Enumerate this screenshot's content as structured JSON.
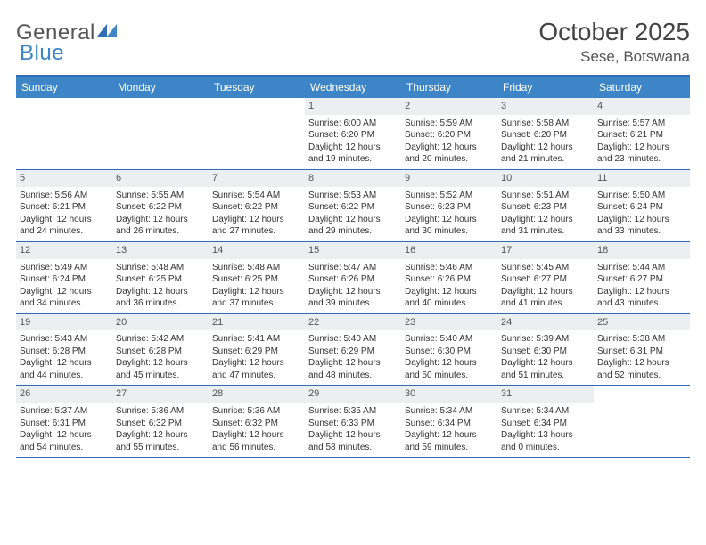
{
  "brand": {
    "general": "General",
    "blue": "Blue"
  },
  "title": "October 2025",
  "location": "Sese, Botswana",
  "colors": {
    "header_bg": "#3d85c6",
    "border": "#2f6eb5",
    "daynum_bg": "#eceff1"
  },
  "daysOfWeek": [
    "Sunday",
    "Monday",
    "Tuesday",
    "Wednesday",
    "Thursday",
    "Friday",
    "Saturday"
  ],
  "weeks": [
    [
      {
        "num": "",
        "sunrise": "",
        "sunset": "",
        "daylight": ""
      },
      {
        "num": "",
        "sunrise": "",
        "sunset": "",
        "daylight": ""
      },
      {
        "num": "",
        "sunrise": "",
        "sunset": "",
        "daylight": ""
      },
      {
        "num": "1",
        "sunrise": "Sunrise: 6:00 AM",
        "sunset": "Sunset: 6:20 PM",
        "daylight": "Daylight: 12 hours and 19 minutes."
      },
      {
        "num": "2",
        "sunrise": "Sunrise: 5:59 AM",
        "sunset": "Sunset: 6:20 PM",
        "daylight": "Daylight: 12 hours and 20 minutes."
      },
      {
        "num": "3",
        "sunrise": "Sunrise: 5:58 AM",
        "sunset": "Sunset: 6:20 PM",
        "daylight": "Daylight: 12 hours and 21 minutes."
      },
      {
        "num": "4",
        "sunrise": "Sunrise: 5:57 AM",
        "sunset": "Sunset: 6:21 PM",
        "daylight": "Daylight: 12 hours and 23 minutes."
      }
    ],
    [
      {
        "num": "5",
        "sunrise": "Sunrise: 5:56 AM",
        "sunset": "Sunset: 6:21 PM",
        "daylight": "Daylight: 12 hours and 24 minutes."
      },
      {
        "num": "6",
        "sunrise": "Sunrise: 5:55 AM",
        "sunset": "Sunset: 6:22 PM",
        "daylight": "Daylight: 12 hours and 26 minutes."
      },
      {
        "num": "7",
        "sunrise": "Sunrise: 5:54 AM",
        "sunset": "Sunset: 6:22 PM",
        "daylight": "Daylight: 12 hours and 27 minutes."
      },
      {
        "num": "8",
        "sunrise": "Sunrise: 5:53 AM",
        "sunset": "Sunset: 6:22 PM",
        "daylight": "Daylight: 12 hours and 29 minutes."
      },
      {
        "num": "9",
        "sunrise": "Sunrise: 5:52 AM",
        "sunset": "Sunset: 6:23 PM",
        "daylight": "Daylight: 12 hours and 30 minutes."
      },
      {
        "num": "10",
        "sunrise": "Sunrise: 5:51 AM",
        "sunset": "Sunset: 6:23 PM",
        "daylight": "Daylight: 12 hours and 31 minutes."
      },
      {
        "num": "11",
        "sunrise": "Sunrise: 5:50 AM",
        "sunset": "Sunset: 6:24 PM",
        "daylight": "Daylight: 12 hours and 33 minutes."
      }
    ],
    [
      {
        "num": "12",
        "sunrise": "Sunrise: 5:49 AM",
        "sunset": "Sunset: 6:24 PM",
        "daylight": "Daylight: 12 hours and 34 minutes."
      },
      {
        "num": "13",
        "sunrise": "Sunrise: 5:48 AM",
        "sunset": "Sunset: 6:25 PM",
        "daylight": "Daylight: 12 hours and 36 minutes."
      },
      {
        "num": "14",
        "sunrise": "Sunrise: 5:48 AM",
        "sunset": "Sunset: 6:25 PM",
        "daylight": "Daylight: 12 hours and 37 minutes."
      },
      {
        "num": "15",
        "sunrise": "Sunrise: 5:47 AM",
        "sunset": "Sunset: 6:26 PM",
        "daylight": "Daylight: 12 hours and 39 minutes."
      },
      {
        "num": "16",
        "sunrise": "Sunrise: 5:46 AM",
        "sunset": "Sunset: 6:26 PM",
        "daylight": "Daylight: 12 hours and 40 minutes."
      },
      {
        "num": "17",
        "sunrise": "Sunrise: 5:45 AM",
        "sunset": "Sunset: 6:27 PM",
        "daylight": "Daylight: 12 hours and 41 minutes."
      },
      {
        "num": "18",
        "sunrise": "Sunrise: 5:44 AM",
        "sunset": "Sunset: 6:27 PM",
        "daylight": "Daylight: 12 hours and 43 minutes."
      }
    ],
    [
      {
        "num": "19",
        "sunrise": "Sunrise: 5:43 AM",
        "sunset": "Sunset: 6:28 PM",
        "daylight": "Daylight: 12 hours and 44 minutes."
      },
      {
        "num": "20",
        "sunrise": "Sunrise: 5:42 AM",
        "sunset": "Sunset: 6:28 PM",
        "daylight": "Daylight: 12 hours and 45 minutes."
      },
      {
        "num": "21",
        "sunrise": "Sunrise: 5:41 AM",
        "sunset": "Sunset: 6:29 PM",
        "daylight": "Daylight: 12 hours and 47 minutes."
      },
      {
        "num": "22",
        "sunrise": "Sunrise: 5:40 AM",
        "sunset": "Sunset: 6:29 PM",
        "daylight": "Daylight: 12 hours and 48 minutes."
      },
      {
        "num": "23",
        "sunrise": "Sunrise: 5:40 AM",
        "sunset": "Sunset: 6:30 PM",
        "daylight": "Daylight: 12 hours and 50 minutes."
      },
      {
        "num": "24",
        "sunrise": "Sunrise: 5:39 AM",
        "sunset": "Sunset: 6:30 PM",
        "daylight": "Daylight: 12 hours and 51 minutes."
      },
      {
        "num": "25",
        "sunrise": "Sunrise: 5:38 AM",
        "sunset": "Sunset: 6:31 PM",
        "daylight": "Daylight: 12 hours and 52 minutes."
      }
    ],
    [
      {
        "num": "26",
        "sunrise": "Sunrise: 5:37 AM",
        "sunset": "Sunset: 6:31 PM",
        "daylight": "Daylight: 12 hours and 54 minutes."
      },
      {
        "num": "27",
        "sunrise": "Sunrise: 5:36 AM",
        "sunset": "Sunset: 6:32 PM",
        "daylight": "Daylight: 12 hours and 55 minutes."
      },
      {
        "num": "28",
        "sunrise": "Sunrise: 5:36 AM",
        "sunset": "Sunset: 6:32 PM",
        "daylight": "Daylight: 12 hours and 56 minutes."
      },
      {
        "num": "29",
        "sunrise": "Sunrise: 5:35 AM",
        "sunset": "Sunset: 6:33 PM",
        "daylight": "Daylight: 12 hours and 58 minutes."
      },
      {
        "num": "30",
        "sunrise": "Sunrise: 5:34 AM",
        "sunset": "Sunset: 6:34 PM",
        "daylight": "Daylight: 12 hours and 59 minutes."
      },
      {
        "num": "31",
        "sunrise": "Sunrise: 5:34 AM",
        "sunset": "Sunset: 6:34 PM",
        "daylight": "Daylight: 13 hours and 0 minutes."
      },
      {
        "num": "",
        "sunrise": "",
        "sunset": "",
        "daylight": ""
      }
    ]
  ]
}
